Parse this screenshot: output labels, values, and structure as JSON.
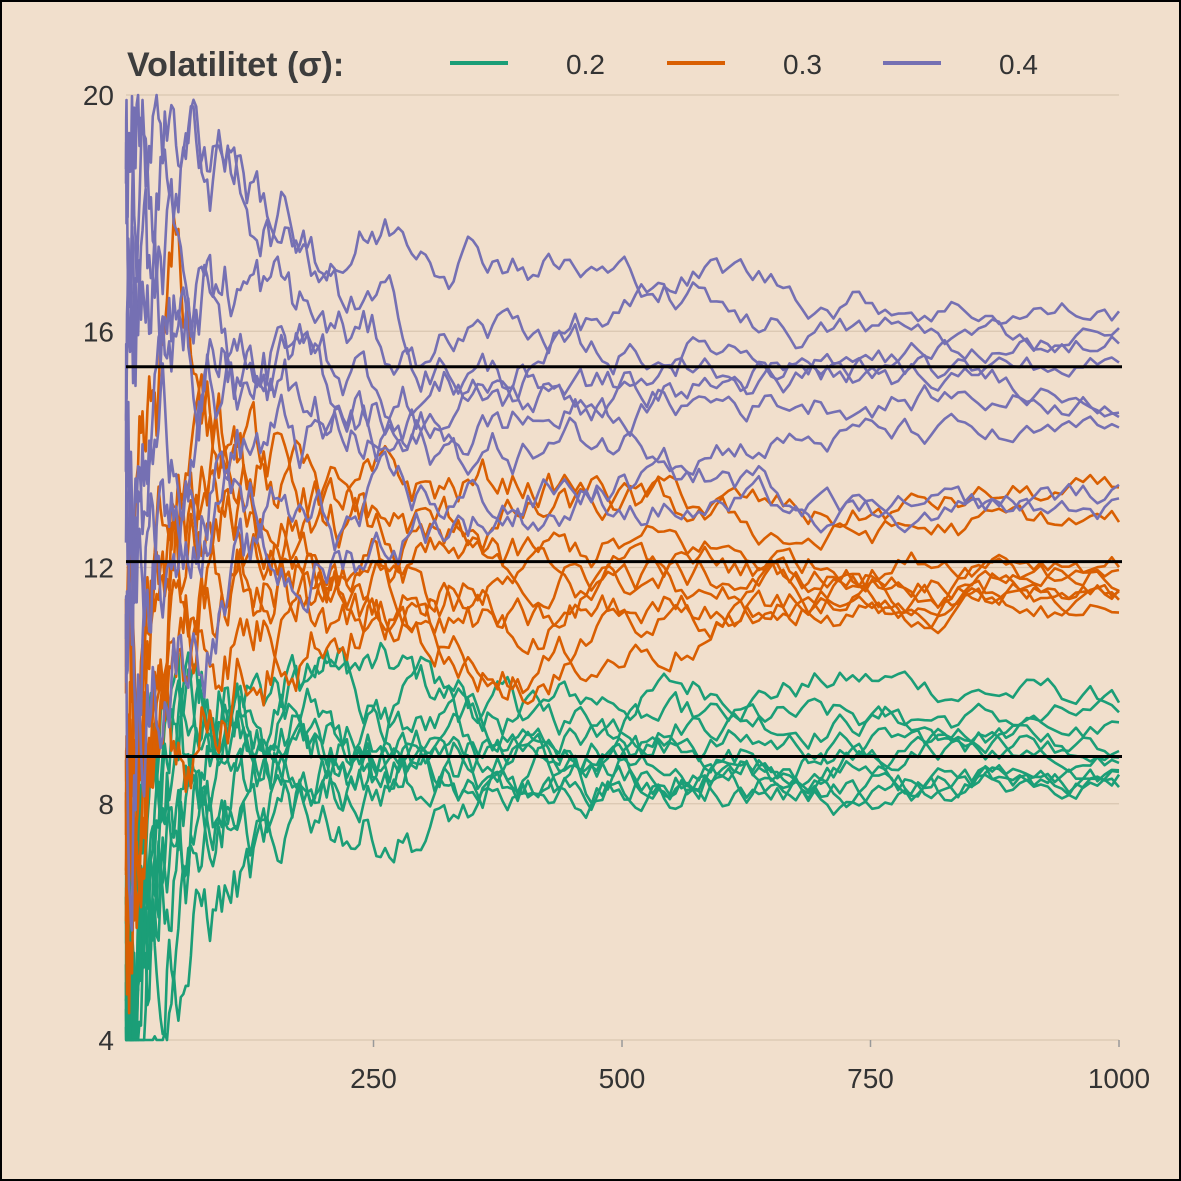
{
  "chart_data": {
    "type": "line",
    "legend": {
      "title": "Volatilitet (σ):",
      "placement": "top",
      "entries": [
        {
          "label": "0.2",
          "color": "#1b9e77"
        },
        {
          "label": "0.3",
          "color": "#d95f02"
        },
        {
          "label": "0.4",
          "color": "#7570b3"
        }
      ]
    },
    "xlim": [
      1,
      1000
    ],
    "ylim": [
      4,
      20
    ],
    "x_ticks": [
      250,
      500,
      750,
      1000
    ],
    "y_ticks": [
      4,
      8,
      12,
      16,
      20
    ],
    "grid": "horizontal",
    "reference_lines": [
      8.8,
      12.1,
      15.4
    ],
    "series": [
      {
        "group": "0.2",
        "color": "#1b9e77",
        "x": [
          1,
          50,
          100,
          200,
          300,
          400,
          500,
          600,
          700,
          800,
          900,
          1000
        ],
        "y": [
          4.5,
          7.8,
          9.5,
          10.4,
          9.9,
          9.5,
          9.8,
          10.0,
          10.1,
          10.0,
          9.9,
          9.7
        ]
      },
      {
        "group": "0.2",
        "color": "#1b9e77",
        "x": [
          1,
          50,
          100,
          200,
          300,
          400,
          500,
          600,
          700,
          800,
          900,
          1000
        ],
        "y": [
          5.2,
          8.8,
          10.2,
          9.9,
          9.6,
          9.4,
          9.5,
          9.6,
          9.5,
          9.5,
          9.4,
          9.4
        ]
      },
      {
        "group": "0.2",
        "color": "#1b9e77",
        "x": [
          1,
          50,
          100,
          200,
          300,
          400,
          500,
          600,
          700,
          800,
          900,
          1000
        ],
        "y": [
          6.0,
          9.4,
          9.8,
          9.5,
          9.2,
          9.1,
          9.3,
          9.2,
          9.3,
          9.2,
          9.2,
          9.2
        ]
      },
      {
        "group": "0.2",
        "color": "#1b9e77",
        "x": [
          1,
          50,
          100,
          200,
          300,
          400,
          500,
          600,
          700,
          800,
          900,
          1000
        ],
        "y": [
          4.8,
          8.2,
          9.6,
          9.2,
          9.0,
          9.2,
          9.0,
          9.1,
          9.0,
          9.0,
          9.0,
          9.0
        ]
      },
      {
        "group": "0.2",
        "color": "#1b9e77",
        "x": [
          1,
          50,
          100,
          200,
          300,
          400,
          500,
          600,
          700,
          800,
          900,
          1000
        ],
        "y": [
          5.5,
          8.5,
          9.2,
          9.0,
          8.8,
          8.9,
          8.8,
          8.9,
          8.9,
          8.9,
          8.9,
          8.9
        ]
      },
      {
        "group": "0.2",
        "color": "#1b9e77",
        "x": [
          1,
          50,
          100,
          200,
          300,
          400,
          500,
          600,
          700,
          800,
          900,
          1000
        ],
        "y": [
          4.2,
          7.0,
          8.8,
          8.6,
          8.7,
          8.8,
          8.6,
          8.7,
          8.8,
          8.8,
          8.8,
          8.8
        ]
      },
      {
        "group": "0.2",
        "color": "#1b9e77",
        "x": [
          1,
          50,
          100,
          200,
          300,
          400,
          500,
          600,
          700,
          800,
          900,
          1000
        ],
        "y": [
          5.0,
          8.0,
          8.5,
          8.5,
          8.6,
          8.3,
          8.5,
          8.5,
          8.6,
          8.5,
          8.5,
          8.6
        ]
      },
      {
        "group": "0.2",
        "color": "#1b9e77",
        "x": [
          1,
          50,
          100,
          200,
          300,
          400,
          500,
          600,
          700,
          800,
          900,
          1000
        ],
        "y": [
          4.6,
          6.4,
          7.4,
          8.2,
          8.6,
          8.6,
          8.4,
          8.5,
          8.4,
          8.3,
          8.4,
          8.5
        ]
      },
      {
        "group": "0.2",
        "color": "#1b9e77",
        "x": [
          1,
          50,
          100,
          200,
          300,
          400,
          500,
          600,
          700,
          800,
          900,
          1000
        ],
        "y": [
          5.8,
          6.6,
          7.0,
          8.0,
          8.3,
          8.4,
          8.2,
          8.3,
          8.2,
          8.1,
          8.2,
          8.3
        ]
      },
      {
        "group": "0.2",
        "color": "#1b9e77",
        "x": [
          1,
          50,
          100,
          200,
          300,
          400,
          500,
          600,
          700,
          800,
          900,
          1000
        ],
        "y": [
          4.4,
          5.6,
          6.4,
          7.8,
          7.6,
          8.0,
          8.1,
          8.4,
          8.3,
          8.2,
          8.3,
          8.4
        ]
      },
      {
        "group": "0.3",
        "color": "#d95f02",
        "x": [
          1,
          50,
          100,
          200,
          300,
          400,
          500,
          600,
          700,
          800,
          900,
          1000
        ],
        "y": [
          7.0,
          14.0,
          14.5,
          13.0,
          13.2,
          13.5,
          13.2,
          13.0,
          12.8,
          13.0,
          13.2,
          13.1
        ]
      },
      {
        "group": "0.3",
        "color": "#d95f02",
        "x": [
          1,
          50,
          100,
          200,
          300,
          400,
          500,
          600,
          700,
          800,
          900,
          1000
        ],
        "y": [
          9.0,
          16.5,
          13.5,
          13.0,
          12.6,
          12.8,
          12.9,
          12.7,
          12.5,
          12.6,
          12.7,
          12.7
        ]
      },
      {
        "group": "0.3",
        "color": "#d95f02",
        "x": [
          1,
          50,
          100,
          200,
          300,
          400,
          500,
          600,
          700,
          800,
          900,
          1000
        ],
        "y": [
          6.0,
          13.0,
          13.8,
          12.8,
          12.2,
          12.0,
          12.3,
          12.2,
          12.1,
          12.2,
          12.3,
          12.2
        ]
      },
      {
        "group": "0.3",
        "color": "#d95f02",
        "x": [
          1,
          50,
          100,
          200,
          300,
          400,
          500,
          600,
          700,
          800,
          900,
          1000
        ],
        "y": [
          8.0,
          12.5,
          13.2,
          12.2,
          11.9,
          11.8,
          11.9,
          12.0,
          11.9,
          11.9,
          12.0,
          12.0
        ]
      },
      {
        "group": "0.3",
        "color": "#d95f02",
        "x": [
          1,
          50,
          100,
          200,
          300,
          400,
          500,
          600,
          700,
          800,
          900,
          1000
        ],
        "y": [
          10.0,
          11.5,
          12.6,
          11.9,
          11.7,
          11.6,
          11.8,
          11.8,
          11.8,
          11.7,
          11.8,
          11.8
        ]
      },
      {
        "group": "0.3",
        "color": "#d95f02",
        "x": [
          1,
          50,
          100,
          200,
          300,
          400,
          500,
          600,
          700,
          800,
          900,
          1000
        ],
        "y": [
          5.5,
          11.0,
          12.0,
          11.6,
          11.5,
          11.2,
          11.6,
          11.7,
          11.6,
          11.5,
          11.6,
          11.6
        ]
      },
      {
        "group": "0.3",
        "color": "#d95f02",
        "x": [
          1,
          50,
          100,
          200,
          300,
          400,
          500,
          600,
          700,
          800,
          900,
          1000
        ],
        "y": [
          7.5,
          10.5,
          11.6,
          11.4,
          11.3,
          10.8,
          11.2,
          11.5,
          11.5,
          11.4,
          11.5,
          11.5
        ]
      },
      {
        "group": "0.3",
        "color": "#d95f02",
        "x": [
          1,
          50,
          100,
          200,
          300,
          400,
          500,
          600,
          700,
          800,
          900,
          1000
        ],
        "y": [
          9.5,
          10.0,
          11.0,
          11.2,
          11.0,
          10.5,
          10.8,
          11.2,
          11.4,
          11.3,
          11.4,
          11.4
        ]
      },
      {
        "group": "0.3",
        "color": "#d95f02",
        "x": [
          1,
          50,
          100,
          200,
          300,
          400,
          500,
          600,
          700,
          800,
          900,
          1000
        ],
        "y": [
          6.5,
          9.0,
          10.2,
          11.0,
          10.8,
          10.4,
          10.6,
          11.0,
          11.3,
          11.2,
          11.3,
          11.3
        ]
      },
      {
        "group": "0.4",
        "color": "#7570b3",
        "x": [
          1,
          50,
          100,
          200,
          300,
          400,
          500,
          600,
          700,
          800,
          900,
          1000
        ],
        "y": [
          19.5,
          19.8,
          18.5,
          17.5,
          17.8,
          17.4,
          16.8,
          17.0,
          16.6,
          16.5,
          16.4,
          16.3
        ]
      },
      {
        "group": "0.4",
        "color": "#7570b3",
        "x": [
          1,
          50,
          100,
          200,
          300,
          400,
          500,
          600,
          700,
          800,
          900,
          1000
        ],
        "y": [
          18.0,
          19.0,
          19.5,
          16.5,
          15.8,
          16.0,
          16.2,
          16.4,
          16.0,
          15.9,
          15.9,
          15.9
        ]
      },
      {
        "group": "0.4",
        "color": "#7570b3",
        "x": [
          1,
          50,
          100,
          200,
          300,
          400,
          500,
          600,
          700,
          800,
          900,
          1000
        ],
        "y": [
          16.0,
          17.5,
          17.0,
          16.0,
          15.5,
          15.2,
          15.6,
          15.8,
          15.6,
          15.6,
          15.7,
          15.7
        ]
      },
      {
        "group": "0.4",
        "color": "#7570b3",
        "x": [
          1,
          50,
          100,
          200,
          300,
          400,
          500,
          600,
          700,
          800,
          900,
          1000
        ],
        "y": [
          15.0,
          16.0,
          16.0,
          15.5,
          15.0,
          15.3,
          15.0,
          15.4,
          15.3,
          15.4,
          15.4,
          15.4
        ]
      },
      {
        "group": "0.4",
        "color": "#7570b3",
        "x": [
          1,
          50,
          100,
          200,
          300,
          400,
          500,
          600,
          700,
          800,
          900,
          1000
        ],
        "y": [
          14.0,
          15.5,
          15.5,
          15.0,
          14.6,
          14.8,
          15.0,
          15.1,
          15.1,
          15.1,
          15.1,
          15.1
        ]
      },
      {
        "group": "0.4",
        "color": "#7570b3",
        "x": [
          1,
          50,
          100,
          200,
          300,
          400,
          500,
          600,
          700,
          800,
          900,
          1000
        ],
        "y": [
          13.0,
          14.5,
          15.0,
          14.5,
          14.2,
          14.5,
          14.6,
          14.8,
          14.9,
          14.9,
          14.9,
          14.9
        ]
      },
      {
        "group": "0.4",
        "color": "#7570b3",
        "x": [
          1,
          50,
          100,
          200,
          300,
          400,
          500,
          600,
          700,
          800,
          900,
          1000
        ],
        "y": [
          12.0,
          13.5,
          14.2,
          14.0,
          13.8,
          14.0,
          14.2,
          14.3,
          14.2,
          14.2,
          14.1,
          14.1
        ]
      },
      {
        "group": "0.4",
        "color": "#7570b3",
        "x": [
          1,
          50,
          100,
          200,
          300,
          400,
          500,
          600,
          700,
          800,
          900,
          1000
        ],
        "y": [
          11.0,
          12.0,
          13.0,
          12.5,
          13.0,
          13.2,
          13.4,
          13.5,
          13.2,
          13.0,
          13.1,
          13.2
        ]
      },
      {
        "group": "0.4",
        "color": "#7570b3",
        "x": [
          1,
          50,
          100,
          200,
          300,
          400,
          500,
          600,
          700,
          800,
          900,
          1000
        ],
        "y": [
          10.0,
          11.0,
          11.5,
          12.0,
          12.8,
          13.0,
          13.2,
          13.0,
          12.9,
          12.8,
          12.9,
          13.0
        ]
      }
    ]
  }
}
